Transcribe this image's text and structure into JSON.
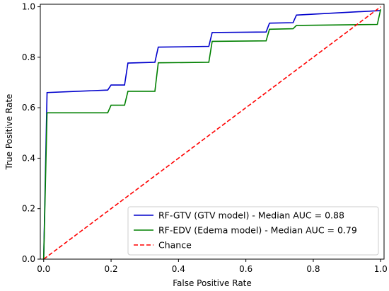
{
  "chart_data": {
    "type": "line",
    "title": "",
    "xlabel": "False Positive Rate",
    "ylabel": "True Positive Rate",
    "xlim": [
      -0.01,
      1.01
    ],
    "ylim": [
      0.0,
      1.01
    ],
    "xticks": [
      "0.0",
      "0.2",
      "0.4",
      "0.6",
      "0.8",
      "1.0"
    ],
    "yticks": [
      "0.0",
      "0.2",
      "0.4",
      "0.6",
      "0.8",
      "1.0"
    ],
    "grid": false,
    "legend_position": "lower-right",
    "series": [
      {
        "name": "RF-GTV (GTV model) - Median AUC = 0.88",
        "color": "#0000cc",
        "style": "solid",
        "x": [
          0.0,
          0.01,
          0.19,
          0.2,
          0.24,
          0.25,
          0.33,
          0.34,
          0.49,
          0.5,
          0.66,
          0.67,
          0.74,
          0.75,
          1.0
        ],
        "y": [
          0.0,
          0.66,
          0.67,
          0.69,
          0.69,
          0.777,
          0.78,
          0.84,
          0.843,
          0.898,
          0.9,
          0.935,
          0.937,
          0.967,
          0.985
        ]
      },
      {
        "name": "RF-EDV (Edema model) - Median AUC = 0.79",
        "color": "#008000",
        "style": "solid",
        "x": [
          0.0,
          0.01,
          0.19,
          0.2,
          0.24,
          0.25,
          0.33,
          0.34,
          0.49,
          0.5,
          0.66,
          0.67,
          0.74,
          0.75,
          0.99,
          1.0
        ],
        "y": [
          0.0,
          0.58,
          0.58,
          0.61,
          0.61,
          0.665,
          0.665,
          0.778,
          0.78,
          0.863,
          0.865,
          0.911,
          0.913,
          0.926,
          0.93,
          0.99
        ]
      },
      {
        "name": "Chance",
        "color": "#ff0000",
        "style": "dashed",
        "x": [
          0.0,
          1.0
        ],
        "y": [
          0.0,
          1.0
        ]
      }
    ]
  }
}
